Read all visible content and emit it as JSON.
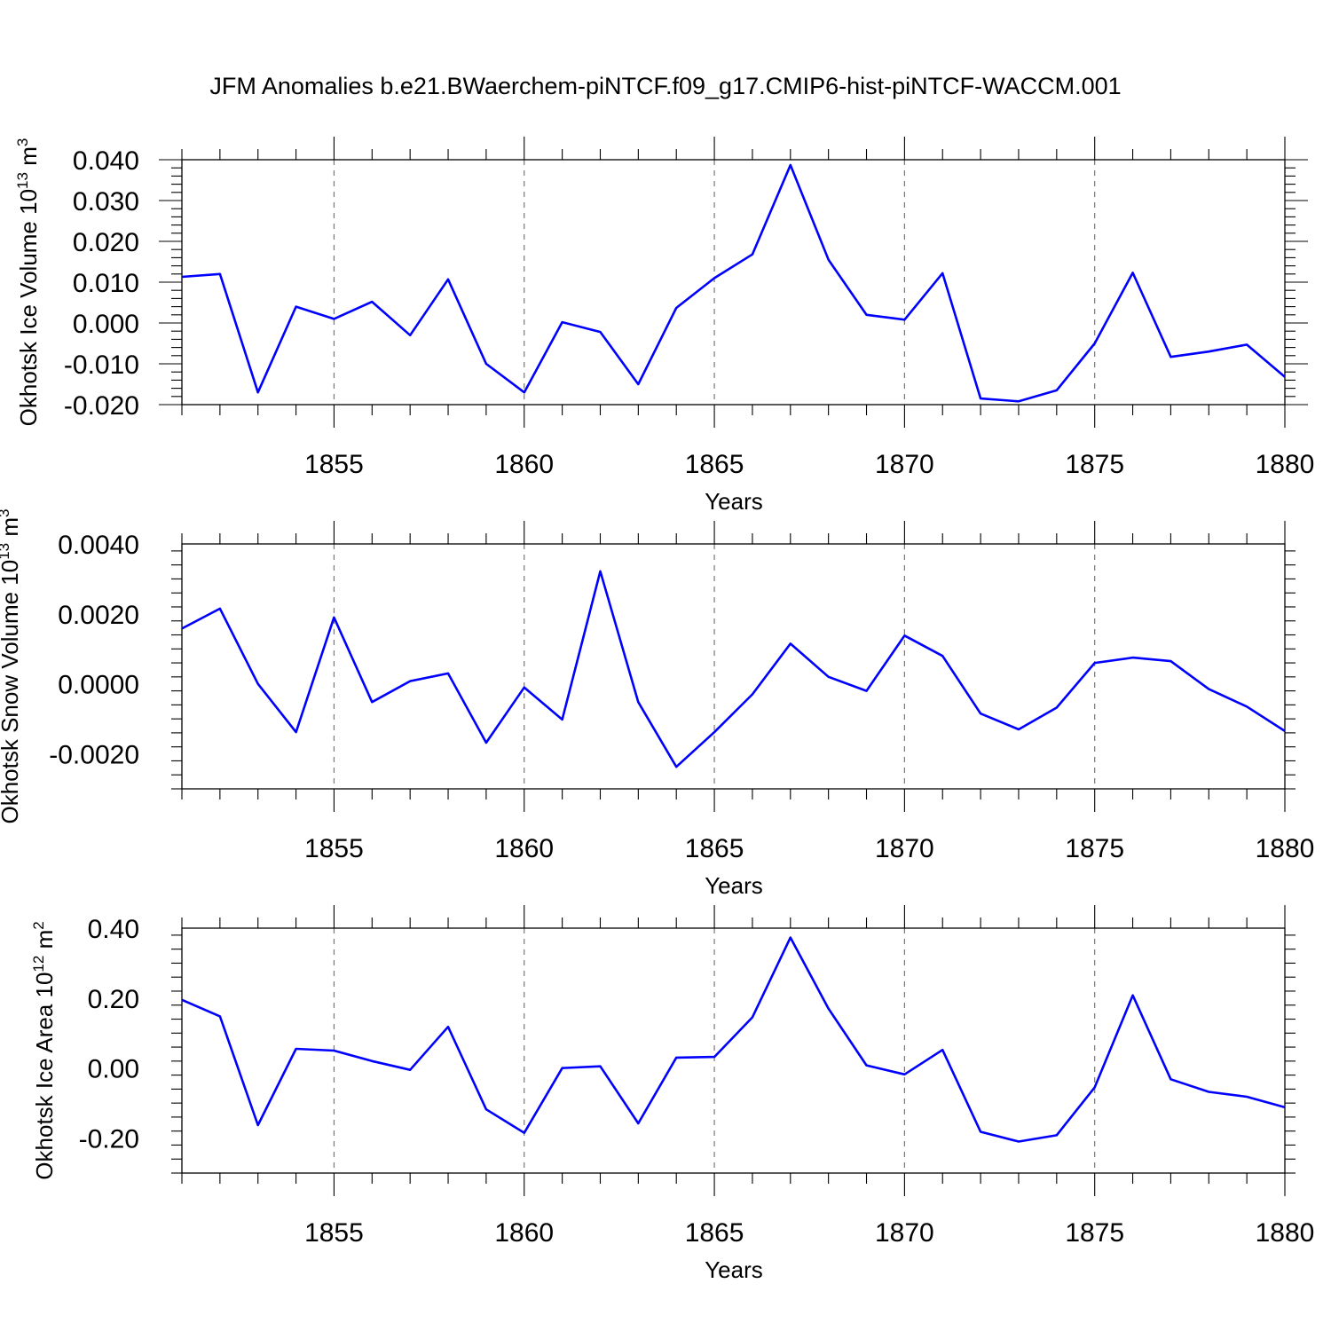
{
  "title": "JFM Anomalies b.e21.BWaerchem-piNTCF.f09_g17.CMIP6-hist-piNTCF-WACCM.001",
  "colors": {
    "line": "#0000ff",
    "grid": "#777777",
    "axis": "#000000"
  },
  "chart_data": [
    {
      "type": "line",
      "ylabel": "Okhotsk Ice Volume 10",
      "ylabel_exp": "13",
      "ylabel_unit": " m",
      "ylabel_unit_exp": "3",
      "xlabel": "Years",
      "xlim": [
        1851,
        1880
      ],
      "ylim": [
        -0.02,
        0.04
      ],
      "yticks": [
        -0.02,
        -0.01,
        0.0,
        0.01,
        0.02,
        0.03,
        0.04
      ],
      "ytick_labels": [
        "-0.020",
        "-0.010",
        "0.000",
        "0.010",
        "0.020",
        "0.030",
        "0.040"
      ],
      "xticks": [
        1855,
        1860,
        1865,
        1870,
        1875,
        1880
      ],
      "xtick_labels": [
        "1855",
        "1860",
        "1865",
        "1870",
        "1875",
        "1880"
      ],
      "grid": "vertical dashed at major x ticks",
      "x": [
        1851,
        1852,
        1853,
        1854,
        1855,
        1856,
        1857,
        1858,
        1859,
        1860,
        1861,
        1862,
        1863,
        1864,
        1865,
        1866,
        1867,
        1868,
        1869,
        1870,
        1871,
        1872,
        1873,
        1874,
        1875,
        1876,
        1877,
        1878,
        1879,
        1880
      ],
      "series": [
        {
          "name": "Okhotsk Ice Volume",
          "values": [
            0.0113,
            0.012,
            -0.017,
            0.004,
            0.001,
            0.0052,
            -0.003,
            0.0107,
            -0.01,
            -0.017,
            0.0002,
            -0.0022,
            -0.015,
            0.0037,
            0.011,
            0.0168,
            0.0387,
            0.0155,
            0.002,
            0.0008,
            0.0122,
            -0.0185,
            -0.0192,
            -0.0165,
            -0.005,
            0.0123,
            -0.0083,
            -0.007,
            -0.0053,
            -0.0132
          ]
        }
      ]
    },
    {
      "type": "line",
      "ylabel": "Okhotsk Snow Volume 10",
      "ylabel_exp": "13",
      "ylabel_unit": " m",
      "ylabel_unit_exp": "3",
      "xlabel": "Years",
      "xlim": [
        1851,
        1880
      ],
      "ylim": [
        -0.003,
        0.004
      ],
      "yticks": [
        -0.002,
        0.0,
        0.002,
        0.004
      ],
      "ytick_labels": [
        "-0.0020",
        "0.0000",
        "0.0020",
        "0.0040"
      ],
      "xticks": [
        1855,
        1860,
        1865,
        1870,
        1875,
        1880
      ],
      "xtick_labels": [
        "1855",
        "1860",
        "1865",
        "1870",
        "1875",
        "1880"
      ],
      "grid": "vertical dashed at major x ticks",
      "x": [
        1851,
        1852,
        1853,
        1854,
        1855,
        1856,
        1857,
        1858,
        1859,
        1860,
        1861,
        1862,
        1863,
        1864,
        1865,
        1866,
        1867,
        1868,
        1869,
        1870,
        1871,
        1872,
        1873,
        1874,
        1875,
        1876,
        1877,
        1878,
        1879,
        1880
      ],
      "series": [
        {
          "name": "Okhotsk Snow Volume",
          "values": [
            0.00158,
            0.00215,
            0.0,
            -0.00138,
            0.0019,
            -0.00052,
            8e-05,
            0.0003,
            -0.00168,
            -0.0001,
            -0.00102,
            0.00322,
            -0.00052,
            -0.00237,
            -0.00138,
            -0.0003,
            0.00115,
            0.0002,
            -0.0002,
            0.00138,
            0.0008,
            -0.00085,
            -0.0013,
            -0.00068,
            0.0006,
            0.00075,
            0.00065,
            -0.00015,
            -0.00065,
            -0.00135
          ]
        }
      ]
    },
    {
      "type": "line",
      "ylabel": "Okhotsk Ice Area 10",
      "ylabel_exp": "12",
      "ylabel_unit": " m",
      "ylabel_unit_exp": "2",
      "xlabel": "Years",
      "xlim": [
        1851,
        1880
      ],
      "ylim": [
        -0.3,
        0.4
      ],
      "yticks": [
        -0.2,
        0.0,
        0.2,
        0.4
      ],
      "ytick_labels": [
        "-0.20",
        "0.00",
        "0.20",
        "0.40"
      ],
      "xticks": [
        1855,
        1860,
        1865,
        1870,
        1875,
        1880
      ],
      "xtick_labels": [
        "1855",
        "1860",
        "1865",
        "1870",
        "1875",
        "1880"
      ],
      "grid": "vertical dashed at major x ticks",
      "x": [
        1851,
        1852,
        1853,
        1854,
        1855,
        1856,
        1857,
        1858,
        1859,
        1860,
        1861,
        1862,
        1863,
        1864,
        1865,
        1866,
        1867,
        1868,
        1869,
        1870,
        1871,
        1872,
        1873,
        1874,
        1875,
        1876,
        1877,
        1878,
        1879,
        1880
      ],
      "series": [
        {
          "name": "Okhotsk Ice Area",
          "values": [
            0.195,
            0.148,
            -0.163,
            0.055,
            0.05,
            0.02,
            -0.005,
            0.118,
            -0.118,
            -0.185,
            0.0,
            0.005,
            -0.158,
            0.03,
            0.032,
            0.145,
            0.373,
            0.17,
            0.008,
            -0.018,
            0.052,
            -0.182,
            -0.21,
            -0.192,
            -0.055,
            0.208,
            -0.032,
            -0.068,
            -0.082,
            -0.112
          ]
        }
      ]
    }
  ]
}
